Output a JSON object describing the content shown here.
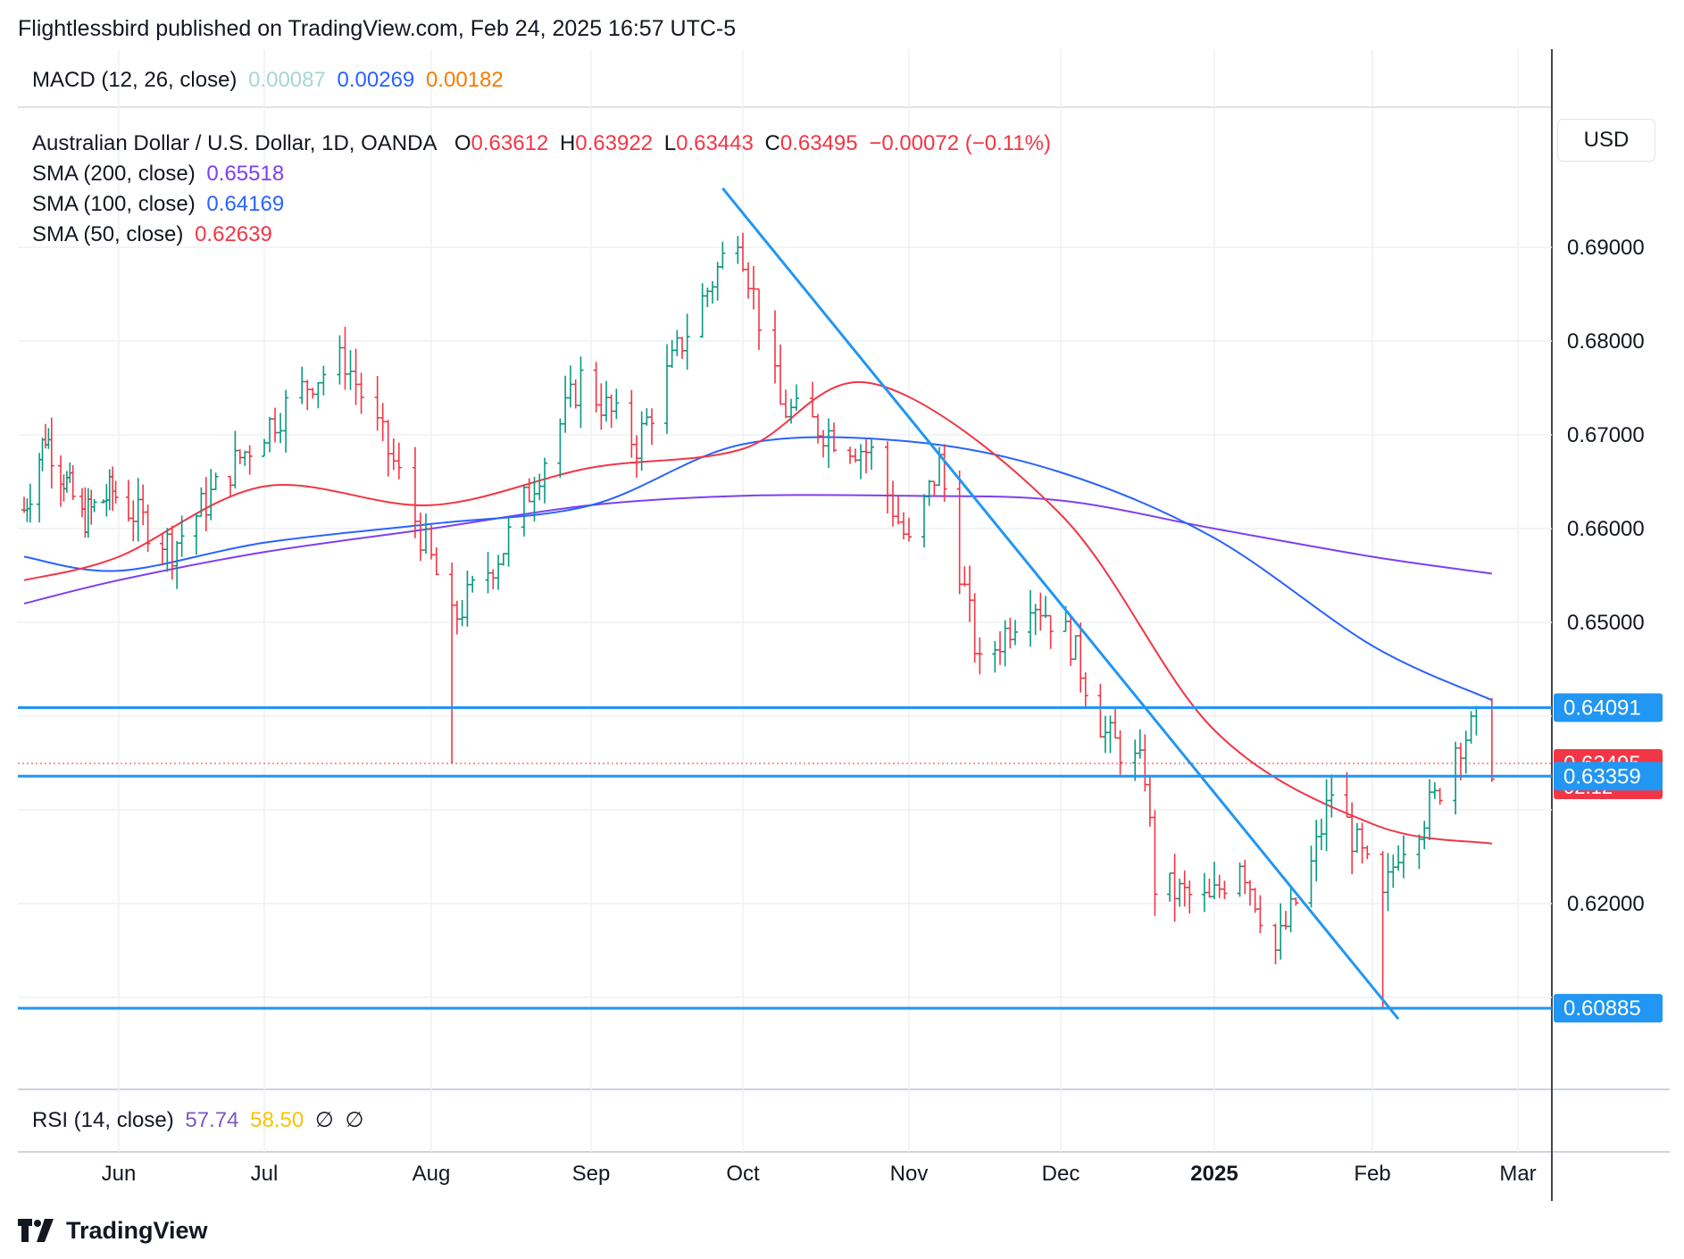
{
  "header": {
    "publish_line": "Flightlessbird published on TradingView.com, Feb 24, 2025 16:57 UTC-5"
  },
  "macd": {
    "label": "MACD (12, 26, close)",
    "values": [
      "0.00087",
      "0.00269",
      "0.00182"
    ],
    "colors": [
      "#a5d6d3",
      "#2962ff",
      "#f57c00"
    ]
  },
  "legend": {
    "symbol": "Australian Dollar / U.S. Dollar, 1D, OANDA",
    "o_label": "O",
    "o_value": "0.63612",
    "h_label": "H",
    "h_value": "0.63922",
    "l_label": "L",
    "l_value": "0.63443",
    "c_label": "C",
    "c_value": "0.63495",
    "change": "−0.00072 (−0.11%)",
    "sma200": {
      "label": "SMA (200, close)",
      "value": "0.65518",
      "color": "#7e3ff2"
    },
    "sma100": {
      "label": "SMA (100, close)",
      "value": "0.64169",
      "color": "#2962ff"
    },
    "sma50": {
      "label": "SMA (50, close)",
      "value": "0.62639",
      "color": "#f23645"
    }
  },
  "rsi": {
    "label": "RSI (14, close)",
    "values": [
      "57.74",
      "58.50",
      "∅",
      "∅"
    ],
    "colors": [
      "#7e57c2",
      "#f9c300",
      "#131722",
      "#131722"
    ]
  },
  "price_axis": {
    "currency": "USD",
    "ticks": [
      "0.69000",
      "0.68000",
      "0.67000",
      "0.66000",
      "0.65000",
      "0.62000"
    ],
    "badges": [
      {
        "value": "0.64091",
        "color": "#2196f3"
      },
      {
        "value": "0.63495",
        "sub": "02:12",
        "color": "#f23645"
      },
      {
        "value": "0.63359",
        "color": "#2196f3"
      },
      {
        "value": "0.60885",
        "color": "#2196f3"
      }
    ]
  },
  "time_axis": {
    "labels": [
      "Jun",
      "Jul",
      "Aug",
      "Sep",
      "Oct",
      "Nov",
      "Dec",
      "2025",
      "Feb",
      "Mar"
    ]
  },
  "branding": {
    "logo_text": "TradingView"
  },
  "chart_data": {
    "type": "line",
    "title": "",
    "ylim": [
      0.6008,
      0.7011
    ],
    "grid": true,
    "price_scale": "right",
    "horizontal_levels": [
      0.64091,
      0.63359,
      0.60885
    ],
    "trendline": {
      "start": [
        "2024-09-27",
        0.6963
      ],
      "end": [
        "2025-02-06",
        0.6077
      ]
    },
    "last_price": 0.63495,
    "sma_200": {
      "x": [
        "2024-05-01",
        "2024-06-01",
        "2024-07-01",
        "2024-08-01",
        "2024-09-01",
        "2024-10-01",
        "2024-11-01",
        "2024-12-01",
        "2025-01-01",
        "2025-02-01",
        "2025-02-24"
      ],
      "values": [
        0.652,
        0.6545,
        0.6575,
        0.66,
        0.6625,
        0.6635,
        0.6635,
        0.663,
        0.66,
        0.657,
        0.6552
      ]
    },
    "sma_100": {
      "x": [
        "2024-05-01",
        "2024-06-01",
        "2024-07-01",
        "2024-08-01",
        "2024-09-01",
        "2024-10-01",
        "2024-11-01",
        "2024-12-01",
        "2025-01-01",
        "2025-02-01",
        "2025-02-24"
      ],
      "values": [
        0.657,
        0.6555,
        0.6585,
        0.6605,
        0.6625,
        0.669,
        0.6693,
        0.666,
        0.659,
        0.6475,
        0.6417
      ]
    },
    "sma_50": {
      "x": [
        "2024-05-01",
        "2024-06-01",
        "2024-07-01",
        "2024-08-01",
        "2024-09-01",
        "2024-10-01",
        "2024-10-25",
        "2024-12-01",
        "2025-01-01",
        "2025-02-01",
        "2025-02-24"
      ],
      "values": [
        0.6545,
        0.657,
        0.6645,
        0.6625,
        0.6665,
        0.6685,
        0.6755,
        0.6615,
        0.6385,
        0.6285,
        0.6264
      ]
    }
  }
}
